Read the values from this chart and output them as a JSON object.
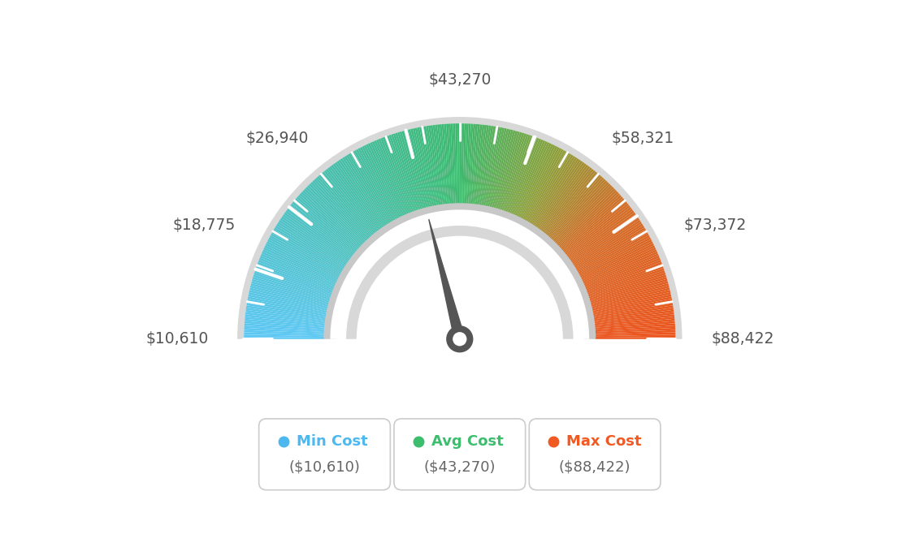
{
  "min_val": 10610,
  "avg_val": 43270,
  "max_val": 88422,
  "tick_labels": [
    "$10,610",
    "$18,775",
    "$26,940",
    "$43,270",
    "$58,321",
    "$73,372",
    "$88,422"
  ],
  "tick_values": [
    10610,
    18775,
    26940,
    43270,
    58321,
    73372,
    88422
  ],
  "legend_items": [
    {
      "label": "Min Cost",
      "value": "($10,610)",
      "color": "#4db8f0"
    },
    {
      "label": "Avg Cost",
      "value": "($43,270)",
      "color": "#3dbd6e"
    },
    {
      "label": "Max Cost",
      "value": "($88,422)",
      "color": "#f05a22"
    }
  ],
  "needle_value": 43270,
  "background_color": "#ffffff",
  "color_stops": [
    [
      0.0,
      [
        93,
        200,
        245
      ]
    ],
    [
      0.3,
      [
        72,
        190,
        170
      ]
    ],
    [
      0.5,
      [
        61,
        185,
        110
      ]
    ],
    [
      0.65,
      [
        140,
        160,
        60
      ]
    ],
    [
      0.78,
      [
        210,
        110,
        40
      ]
    ],
    [
      1.0,
      [
        235,
        85,
        30
      ]
    ]
  ]
}
